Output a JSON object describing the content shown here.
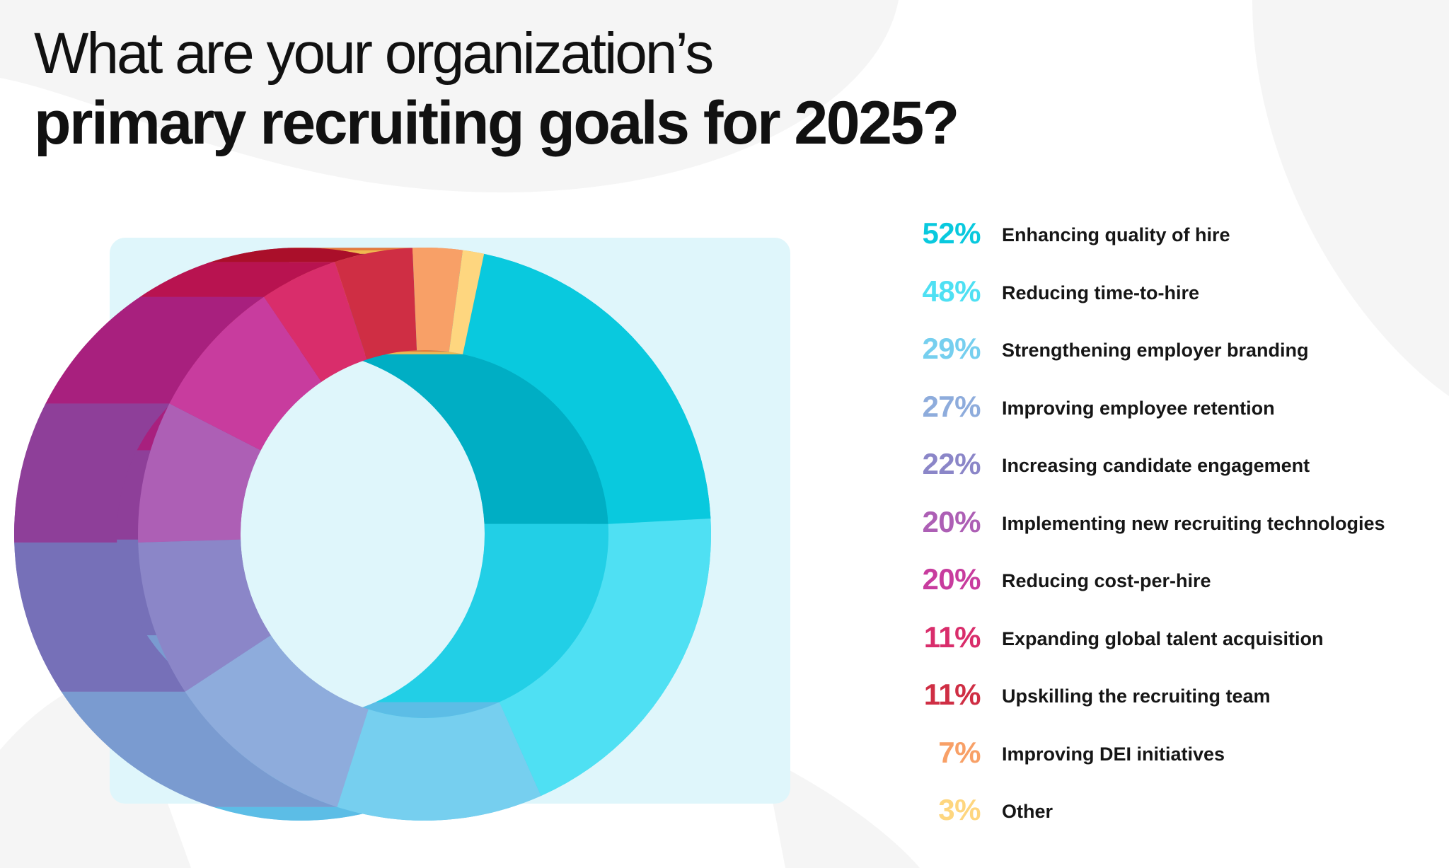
{
  "title": {
    "line1": "What are your organization’s",
    "line2": "primary recruiting goals for 2025?"
  },
  "colors": {
    "background": "#ffffff",
    "panel": "#dff6fb",
    "text": "#161616"
  },
  "chart_data": {
    "type": "pie",
    "variant": "3d-donut",
    "categories": [
      "Enhancing quality of hire",
      "Reducing time-to-hire",
      "Strengthening employer branding",
      "Improving employee retention",
      "Increasing candidate engagement",
      "Implementing new recruiting technologies",
      "Reducing cost-per-hire",
      "Expanding global talent acquisition",
      "Upskilling the recruiting team",
      "Improving DEI initiatives",
      "Other"
    ],
    "values": [
      52,
      48,
      29,
      27,
      22,
      20,
      20,
      11,
      11,
      7,
      3
    ],
    "value_labels": [
      "52%",
      "48%",
      "29%",
      "27%",
      "22%",
      "20%",
      "20%",
      "11%",
      "11%",
      "7%",
      "3%"
    ],
    "colors": [
      "#09c9de",
      "#4fe0f3",
      "#76cfef",
      "#8eacdc",
      "#8b86c8",
      "#ad5fb5",
      "#c83c9e",
      "#d92d6b",
      "#cf2e44",
      "#f8a067",
      "#fed67f"
    ],
    "side_colors": [
      "#00aec4",
      "#22cfe6",
      "#5cbde6",
      "#7a9bd0",
      "#7670b8",
      "#8e3f99",
      "#a8207e",
      "#b81350",
      "#aa0f2a",
      "#e37a3c",
      "#f0b850"
    ],
    "legend_position": "right"
  }
}
